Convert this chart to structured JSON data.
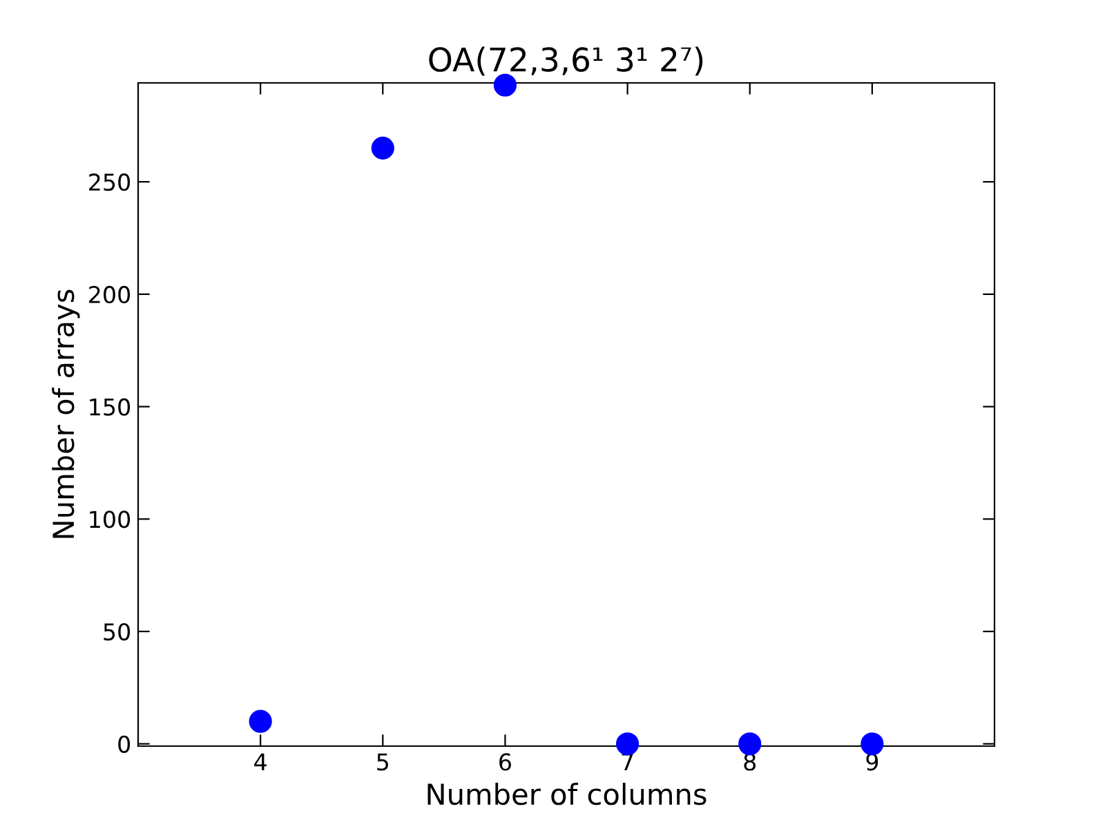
{
  "chart_data": {
    "type": "scatter",
    "title": "OA(72,3,6¹ 3¹ 2⁷)",
    "xlabel": "Number of columns",
    "ylabel": "Number of arrays",
    "x": [
      4,
      5,
      6,
      7,
      8,
      9
    ],
    "series": [
      {
        "color": "#0000ff",
        "values": [
          10,
          265,
          293,
          0,
          0,
          0
        ]
      }
    ],
    "xlim": [
      3,
      10
    ],
    "xticks": [
      4,
      5,
      6,
      7,
      8,
      9
    ],
    "ylim": [
      -1,
      294
    ],
    "yticks": [
      0,
      50,
      100,
      150,
      200,
      250
    ],
    "marker": "circle",
    "grid": false,
    "legend": false
  }
}
